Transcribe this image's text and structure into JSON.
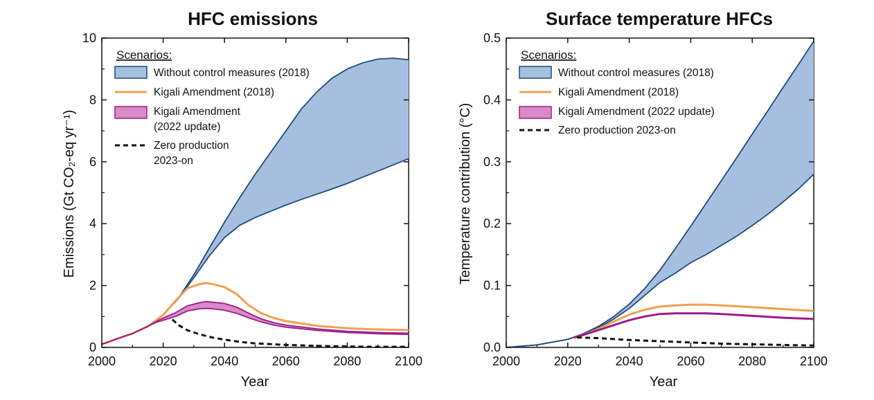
{
  "chart_data": [
    {
      "type": "area",
      "title": "HFC emissions",
      "xlabel": "Year",
      "ylabel": "Emissions (Gt CO₂-eq yr⁻¹)",
      "xlim": [
        2000,
        2100
      ],
      "ylim": [
        0,
        10
      ],
      "xticks": [
        "2000",
        "2020",
        "2040",
        "2060",
        "2080",
        "2100"
      ],
      "yticks": [
        "0",
        "2",
        "4",
        "6",
        "8",
        "10"
      ],
      "grid": false,
      "legend_position": "top-left",
      "legend": {
        "title": "Scenarios:",
        "items": [
          {
            "label": "Without control measures (2018)"
          },
          {
            "label": "Kigali Amendment (2018)"
          },
          {
            "label": "Kigali Amendment",
            "label2": "(2022 update)"
          },
          {
            "label": "Zero production",
            "label2": "2023-on"
          }
        ]
      },
      "series": [
        {
          "name": "Without control measures (2018)",
          "kind": "band",
          "fill": "#a7bfdf",
          "stroke": "#1c4a7c",
          "x": [
            2000,
            2005,
            2010,
            2015,
            2020,
            2025,
            2030,
            2035,
            2040,
            2045,
            2050,
            2055,
            2060,
            2065,
            2070,
            2075,
            2080,
            2085,
            2090,
            2095,
            2100
          ],
          "upper": [
            0.1,
            0.28,
            0.45,
            0.68,
            1.05,
            1.6,
            2.35,
            3.2,
            4.05,
            4.85,
            5.6,
            6.3,
            7.0,
            7.7,
            8.25,
            8.7,
            9.0,
            9.2,
            9.32,
            9.35,
            9.3
          ],
          "lower": [
            0.1,
            0.28,
            0.45,
            0.68,
            1.05,
            1.58,
            2.25,
            2.95,
            3.55,
            3.95,
            4.2,
            4.4,
            4.6,
            4.78,
            4.95,
            5.12,
            5.3,
            5.5,
            5.7,
            5.9,
            6.1
          ]
        },
        {
          "name": "Kigali Amendment (2018)",
          "kind": "line",
          "color": "#f0a050",
          "width": 3,
          "x": [
            2000,
            2005,
            2010,
            2015,
            2020,
            2024,
            2028,
            2032,
            2034,
            2036,
            2040,
            2044,
            2048,
            2052,
            2056,
            2060,
            2070,
            2080,
            2090,
            2100
          ],
          "values": [
            0.1,
            0.28,
            0.45,
            0.68,
            1.05,
            1.5,
            1.92,
            2.05,
            2.08,
            2.05,
            1.95,
            1.72,
            1.35,
            1.1,
            0.95,
            0.85,
            0.7,
            0.62,
            0.58,
            0.56
          ]
        },
        {
          "name": "Kigali Amendment (2022 update)",
          "kind": "band",
          "fill": "#d98ac6",
          "stroke": "#9e1a88",
          "x": [
            2000,
            2005,
            2010,
            2015,
            2018,
            2020,
            2024,
            2028,
            2032,
            2034,
            2036,
            2040,
            2044,
            2048,
            2052,
            2056,
            2060,
            2070,
            2080,
            2090,
            2100
          ],
          "upper": [
            0.1,
            0.28,
            0.45,
            0.68,
            0.85,
            0.95,
            1.12,
            1.35,
            1.45,
            1.48,
            1.46,
            1.42,
            1.3,
            1.1,
            0.92,
            0.8,
            0.72,
            0.6,
            0.52,
            0.48,
            0.46
          ],
          "lower": [
            0.1,
            0.28,
            0.45,
            0.68,
            0.82,
            0.88,
            1.0,
            1.18,
            1.25,
            1.26,
            1.25,
            1.2,
            1.1,
            0.95,
            0.82,
            0.72,
            0.65,
            0.55,
            0.48,
            0.44,
            0.42
          ]
        },
        {
          "name": "Zero production 2023-on",
          "kind": "dashed",
          "color": "#111111",
          "width": 3,
          "x": [
            2023,
            2025,
            2028,
            2032,
            2036,
            2040,
            2045,
            2050,
            2060,
            2070,
            2080,
            2090,
            2100
          ],
          "values": [
            0.9,
            0.72,
            0.55,
            0.42,
            0.32,
            0.25,
            0.18,
            0.13,
            0.08,
            0.05,
            0.03,
            0.02,
            0.02
          ]
        }
      ]
    },
    {
      "type": "area",
      "title": "Surface temperature HFCs",
      "xlabel": "Year",
      "ylabel": "Temperature contribution (°C)",
      "xlim": [
        2000,
        2100
      ],
      "ylim": [
        0,
        0.5
      ],
      "xticks": [
        "2000",
        "2020",
        "2040",
        "2060",
        "2080",
        "2100"
      ],
      "yticks": [
        "0.0",
        "0.1",
        "0.2",
        "0.3",
        "0.4",
        "0.5"
      ],
      "grid": false,
      "legend_position": "top-left",
      "legend": {
        "title": "Scenarios:",
        "items": [
          {
            "label": "Without control measures (2018)"
          },
          {
            "label": "Kigali Amendment (2018)"
          },
          {
            "label": "Kigali Amendment (2022 update)"
          },
          {
            "label": "Zero production 2023-on"
          }
        ]
      },
      "series": [
        {
          "name": "Without control measures (2018)",
          "kind": "band",
          "fill": "#a7bfdf",
          "stroke": "#1c4a7c",
          "x": [
            2000,
            2010,
            2020,
            2025,
            2030,
            2035,
            2040,
            2045,
            2050,
            2055,
            2060,
            2065,
            2070,
            2075,
            2080,
            2085,
            2090,
            2095,
            2100
          ],
          "upper": [
            0.0,
            0.004,
            0.013,
            0.022,
            0.034,
            0.05,
            0.07,
            0.095,
            0.125,
            0.16,
            0.196,
            0.233,
            0.27,
            0.307,
            0.345,
            0.382,
            0.42,
            0.457,
            0.495
          ],
          "lower": [
            0.0,
            0.004,
            0.013,
            0.021,
            0.032,
            0.046,
            0.063,
            0.084,
            0.105,
            0.12,
            0.137,
            0.15,
            0.165,
            0.18,
            0.197,
            0.215,
            0.235,
            0.256,
            0.28
          ]
        },
        {
          "name": "Kigali Amendment (2018)",
          "kind": "line",
          "color": "#f0a050",
          "width": 3,
          "x": [
            2022,
            2025,
            2030,
            2035,
            2040,
            2045,
            2050,
            2055,
            2060,
            2065,
            2070,
            2080,
            2090,
            2100
          ],
          "values": [
            0.016,
            0.02,
            0.03,
            0.042,
            0.053,
            0.061,
            0.066,
            0.068,
            0.069,
            0.069,
            0.068,
            0.065,
            0.062,
            0.059
          ]
        },
        {
          "name": "Kigali Amendment (2022 update)",
          "kind": "line",
          "color": "#9e1a88",
          "width": 3,
          "x": [
            2022,
            2025,
            2030,
            2035,
            2040,
            2045,
            2050,
            2055,
            2060,
            2065,
            2070,
            2080,
            2090,
            2100
          ],
          "values": [
            0.016,
            0.02,
            0.028,
            0.036,
            0.044,
            0.05,
            0.054,
            0.055,
            0.055,
            0.055,
            0.054,
            0.051,
            0.048,
            0.046
          ]
        },
        {
          "name": "Zero production 2023-on",
          "kind": "dashed",
          "color": "#111111",
          "width": 3,
          "x": [
            2023,
            2030,
            2040,
            2050,
            2060,
            2070,
            2080,
            2090,
            2100
          ],
          "values": [
            0.016,
            0.015,
            0.012,
            0.01,
            0.008,
            0.006,
            0.005,
            0.004,
            0.003
          ]
        }
      ]
    }
  ]
}
